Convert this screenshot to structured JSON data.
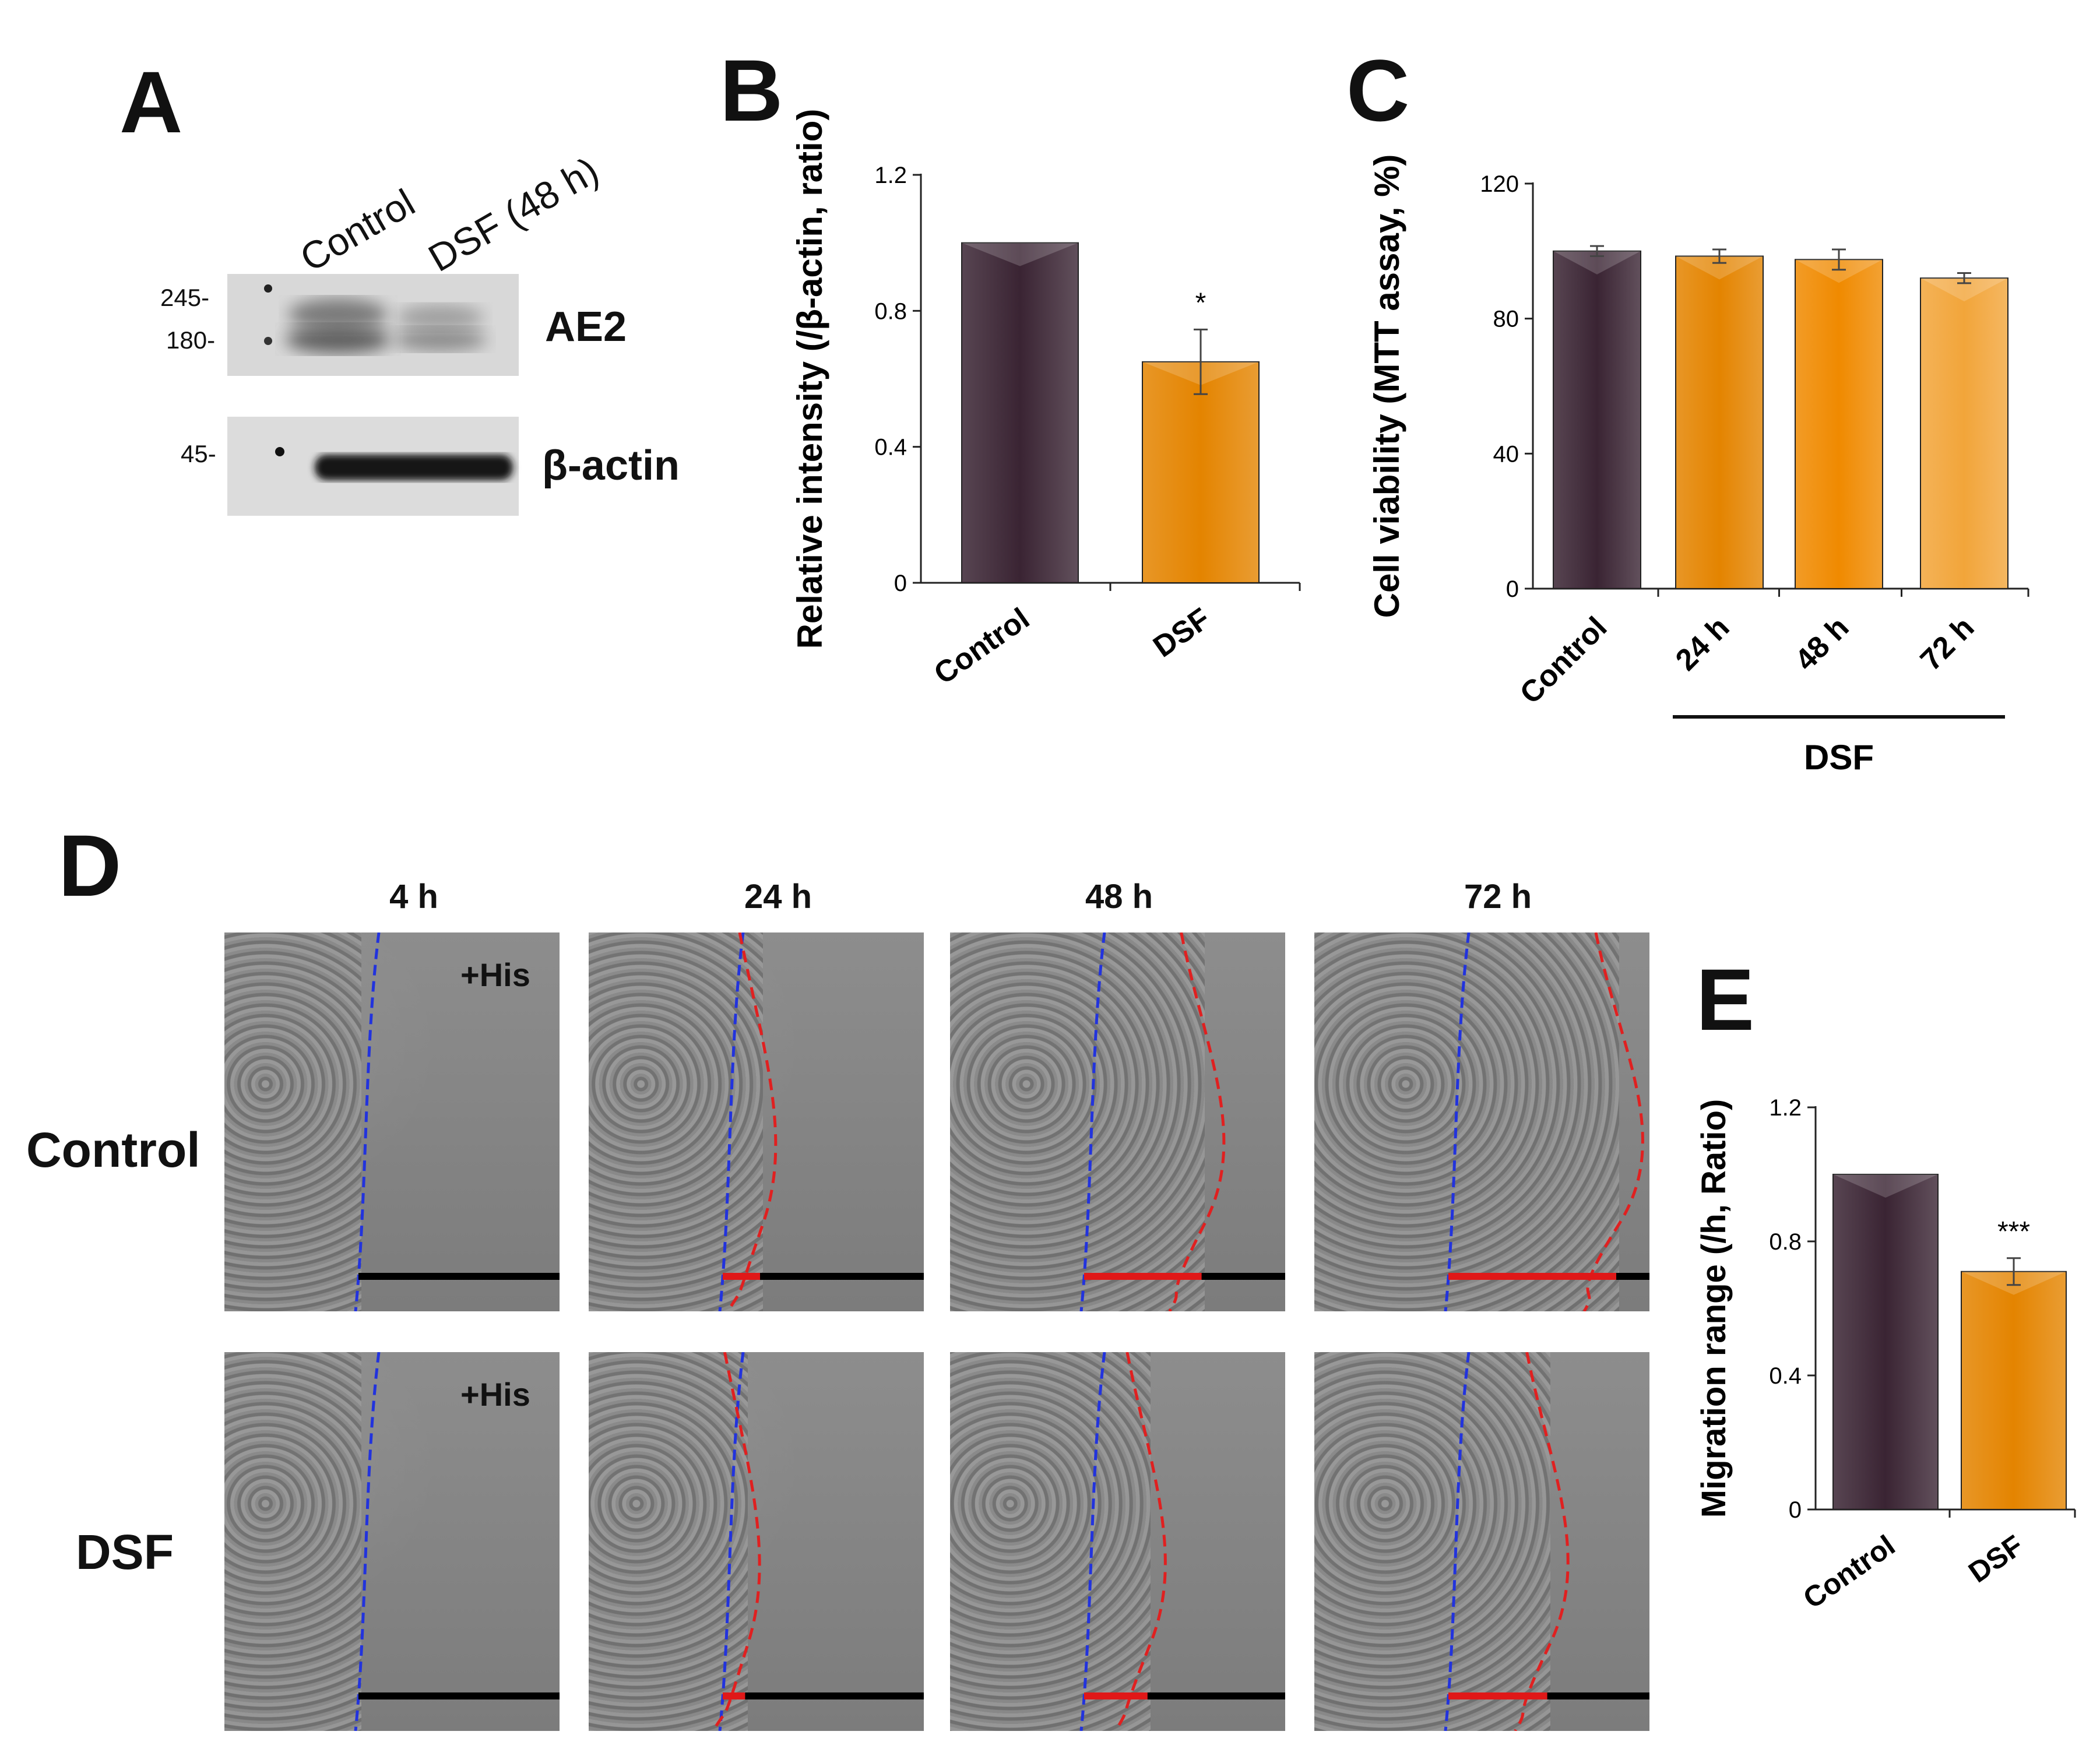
{
  "panels": {
    "a": "A",
    "b": "B",
    "c": "C",
    "d": "D",
    "e": "E"
  },
  "western": {
    "lanes": [
      "Control",
      "DSF (48 h)"
    ],
    "markers_ae2": [
      "245-",
      "180-"
    ],
    "markers_actin": [
      "45-"
    ],
    "labels": [
      "AE2",
      "β-actin"
    ]
  },
  "chart_data": [
    {
      "id": "B",
      "type": "bar",
      "categories": [
        "Control",
        "DSF"
      ],
      "values": [
        1.0,
        0.65
      ],
      "errors": [
        0,
        0.095
      ],
      "significance": [
        "",
        "*"
      ],
      "ylabel": "Relative intensity (/β-actin, ratio)",
      "ylim": [
        0,
        1.2
      ],
      "yticks": [
        0,
        0.4,
        0.8,
        1.2
      ],
      "ytick_labels": [
        "0",
        "0.4",
        "0.8",
        "1.2"
      ],
      "colors": [
        "#3a2433",
        "#e48400"
      ]
    },
    {
      "id": "C",
      "type": "bar",
      "categories": [
        "Control",
        "24 h",
        "48 h",
        "72 h"
      ],
      "values": [
        100,
        98.5,
        97.5,
        92
      ],
      "errors": [
        1.5,
        2,
        3,
        1.5
      ],
      "group_label": "DSF",
      "ylabel": "Cell viability (MTT assay, %)",
      "ylim": [
        0,
        120
      ],
      "yticks": [
        0,
        40,
        80,
        120
      ],
      "ytick_labels": [
        "0",
        "40",
        "80",
        "120"
      ],
      "colors": [
        "#3a2433",
        "#e48400",
        "#f08a00",
        "#f2a53a"
      ]
    },
    {
      "id": "E",
      "type": "bar",
      "categories": [
        "Control",
        "DSF"
      ],
      "values": [
        1.0,
        0.71
      ],
      "errors": [
        0,
        0.04
      ],
      "significance": [
        "",
        "***"
      ],
      "ylabel": "Migration range (/h, Ratio)",
      "ylim": [
        0,
        1.2
      ],
      "yticks": [
        0,
        0.4,
        0.8,
        1.2
      ],
      "ytick_labels": [
        "0",
        "0.4",
        "0.8",
        "1.2"
      ],
      "colors": [
        "#3a2433",
        "#e48400"
      ]
    }
  ],
  "migration": {
    "timepoints": [
      "4 h",
      "24 h",
      "48 h",
      "72 h"
    ],
    "rows": [
      "Control",
      "DSF"
    ],
    "treatment_label": "+His",
    "migration_fraction": {
      "control": [
        0,
        0.2,
        0.63,
        0.9
      ],
      "dsf": [
        0,
        0.12,
        0.34,
        0.53
      ]
    }
  }
}
